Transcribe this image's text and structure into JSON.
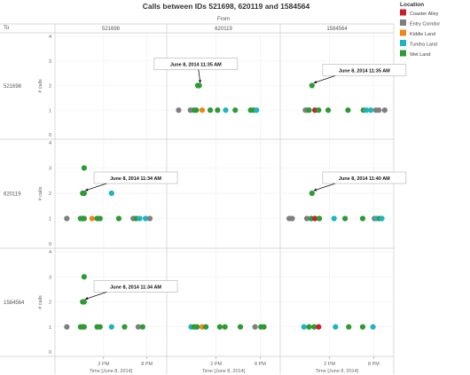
{
  "chart_data": {
    "type": "scatter",
    "title": "Calls between IDs 521698, 620119 and 1584564",
    "column_header": "From",
    "row_header": "To",
    "columns": [
      "521698",
      "620119",
      "1584564"
    ],
    "rows": [
      "521698",
      "620119",
      "1584564"
    ],
    "ylabel": "# calls",
    "xlabel": "Time [June 8, 2014]",
    "ylim": [
      0,
      4
    ],
    "yticks": [
      0,
      1,
      2,
      3,
      4
    ],
    "xlim_hours": [
      8,
      22
    ],
    "xticks": [
      {
        "value": 14,
        "label": "2 PM"
      },
      {
        "value": 20,
        "label": "8 PM"
      }
    ],
    "grid": true,
    "legend": {
      "title": "Location",
      "placement": "top-right",
      "items": [
        {
          "name": "Coaster Alley",
          "color": "#c8202e"
        },
        {
          "name": "Entry Corridor",
          "color": "#7f7f7f"
        },
        {
          "name": "Kiddie Land",
          "color": "#f0851c"
        },
        {
          "name": "Tundra Land",
          "color": "#1fb5c0"
        },
        {
          "name": "Wet Land",
          "color": "#2e9a36"
        }
      ]
    },
    "panels": [
      {
        "row": 0,
        "col": 0,
        "points": []
      },
      {
        "row": 0,
        "col": 1,
        "points": [
          {
            "h": 8.9,
            "y": 1,
            "loc": "Entry Corridor"
          },
          {
            "h": 10.5,
            "y": 1,
            "loc": "Entry Corridor"
          },
          {
            "h": 11.0,
            "y": 1,
            "loc": "Wet Land"
          },
          {
            "h": 11.3,
            "y": 1,
            "loc": "Wet Land"
          },
          {
            "h": 12.1,
            "y": 1,
            "loc": "Kiddie Land"
          },
          {
            "h": 13.2,
            "y": 1,
            "loc": "Wet Land"
          },
          {
            "h": 14.2,
            "y": 1,
            "loc": "Wet Land"
          },
          {
            "h": 15.3,
            "y": 1,
            "loc": "Tundra Land"
          },
          {
            "h": 16.6,
            "y": 1,
            "loc": "Wet Land"
          },
          {
            "h": 18.7,
            "y": 1,
            "loc": "Wet Land"
          },
          {
            "h": 19.1,
            "y": 1,
            "loc": "Wet Land"
          },
          {
            "h": 19.5,
            "y": 1,
            "loc": "Tundra Land"
          },
          {
            "h": 11.5,
            "y": 2,
            "loc": "Wet Land"
          },
          {
            "h": 11.7,
            "y": 2,
            "loc": "Wet Land"
          }
        ],
        "annotation": {
          "text": "June 8, 2014 11:35 AM",
          "h": 11.6,
          "y": 2
        }
      },
      {
        "row": 0,
        "col": 2,
        "points": [
          {
            "h": 10.7,
            "y": 1,
            "loc": "Entry Corridor"
          },
          {
            "h": 10.95,
            "y": 1,
            "loc": "Entry Corridor"
          },
          {
            "h": 11.2,
            "y": 1,
            "loc": "Wet Land"
          },
          {
            "h": 12.0,
            "y": 1,
            "loc": "Coaster Alley"
          },
          {
            "h": 12.5,
            "y": 1,
            "loc": "Wet Land"
          },
          {
            "h": 13.8,
            "y": 1,
            "loc": "Wet Land"
          },
          {
            "h": 16.5,
            "y": 1,
            "loc": "Wet Land"
          },
          {
            "h": 18.6,
            "y": 1,
            "loc": "Wet Land"
          },
          {
            "h": 19.0,
            "y": 1,
            "loc": "Tundra Land"
          },
          {
            "h": 19.6,
            "y": 1,
            "loc": "Tundra Land"
          },
          {
            "h": 20.3,
            "y": 1,
            "loc": "Entry Corridor"
          },
          {
            "h": 20.7,
            "y": 1,
            "loc": "Entry Corridor"
          },
          {
            "h": 21.5,
            "y": 1,
            "loc": "Entry Corridor"
          },
          {
            "h": 11.6,
            "y": 2,
            "loc": "Wet Land"
          }
        ],
        "annotation": {
          "text": "June 8, 2014 11:35 AM",
          "h": 11.6,
          "y": 2
        }
      },
      {
        "row": 1,
        "col": 0,
        "points": [
          {
            "h": 8.9,
            "y": 1,
            "loc": "Entry Corridor"
          },
          {
            "h": 10.8,
            "y": 1,
            "loc": "Wet Land"
          },
          {
            "h": 11.1,
            "y": 1,
            "loc": "Wet Land"
          },
          {
            "h": 11.3,
            "y": 1,
            "loc": "Wet Land"
          },
          {
            "h": 12.4,
            "y": 1,
            "loc": "Kiddie Land"
          },
          {
            "h": 13.1,
            "y": 1,
            "loc": "Wet Land"
          },
          {
            "h": 13.5,
            "y": 1,
            "loc": "Wet Land"
          },
          {
            "h": 16.1,
            "y": 1,
            "loc": "Wet Land"
          },
          {
            "h": 18.1,
            "y": 1,
            "loc": "Entry Corridor"
          },
          {
            "h": 18.5,
            "y": 1,
            "loc": "Wet Land"
          },
          {
            "h": 19.0,
            "y": 1,
            "loc": "Tundra Land"
          },
          {
            "h": 19.8,
            "y": 1,
            "loc": "Tundra Land"
          },
          {
            "h": 20.4,
            "y": 1,
            "loc": "Entry Corridor"
          },
          {
            "h": 11.1,
            "y": 2,
            "loc": "Wet Land"
          },
          {
            "h": 11.3,
            "y": 2,
            "loc": "Wet Land"
          },
          {
            "h": 15.1,
            "y": 2,
            "loc": "Tundra Land"
          },
          {
            "h": 11.3,
            "y": 3,
            "loc": "Wet Land"
          }
        ],
        "annotation": {
          "text": "June 8, 2014 11:34 AM",
          "h": 11.2,
          "y": 2
        }
      },
      {
        "row": 1,
        "col": 1,
        "points": []
      },
      {
        "row": 1,
        "col": 2,
        "points": [
          {
            "h": 8.5,
            "y": 1,
            "loc": "Entry Corridor"
          },
          {
            "h": 8.9,
            "y": 1,
            "loc": "Entry Corridor"
          },
          {
            "h": 10.9,
            "y": 1,
            "loc": "Entry Corridor"
          },
          {
            "h": 11.5,
            "y": 1,
            "loc": "Wet Land"
          },
          {
            "h": 12.0,
            "y": 1,
            "loc": "Coaster Alley"
          },
          {
            "h": 12.6,
            "y": 1,
            "loc": "Wet Land"
          },
          {
            "h": 14.6,
            "y": 1,
            "loc": "Tundra Land"
          },
          {
            "h": 16.1,
            "y": 1,
            "loc": "Wet Land"
          },
          {
            "h": 18.5,
            "y": 1,
            "loc": "Wet Land"
          },
          {
            "h": 20.1,
            "y": 1,
            "loc": "Entry Corridor"
          },
          {
            "h": 20.4,
            "y": 1,
            "loc": "Tundra Land"
          },
          {
            "h": 20.8,
            "y": 1,
            "loc": "Wet Land"
          },
          {
            "h": 21.1,
            "y": 1,
            "loc": "Tundra Land"
          },
          {
            "h": 11.6,
            "y": 2,
            "loc": "Wet Land"
          }
        ],
        "annotation": {
          "text": "June 8, 2014 11:40 AM",
          "h": 11.6,
          "y": 2
        }
      },
      {
        "row": 2,
        "col": 0,
        "points": [
          {
            "h": 8.9,
            "y": 1,
            "loc": "Entry Corridor"
          },
          {
            "h": 10.8,
            "y": 1,
            "loc": "Wet Land"
          },
          {
            "h": 11.1,
            "y": 1,
            "loc": "Wet Land"
          },
          {
            "h": 11.3,
            "y": 1,
            "loc": "Wet Land"
          },
          {
            "h": 13.1,
            "y": 1,
            "loc": "Wet Land"
          },
          {
            "h": 13.5,
            "y": 1,
            "loc": "Wet Land"
          },
          {
            "h": 15.1,
            "y": 1,
            "loc": "Tundra Land"
          },
          {
            "h": 16.9,
            "y": 1,
            "loc": "Wet Land"
          },
          {
            "h": 18.8,
            "y": 1,
            "loc": "Entry Corridor"
          },
          {
            "h": 19.4,
            "y": 1,
            "loc": "Wet Land"
          },
          {
            "h": 11.1,
            "y": 2,
            "loc": "Wet Land"
          },
          {
            "h": 11.3,
            "y": 2,
            "loc": "Wet Land"
          },
          {
            "h": 11.3,
            "y": 3,
            "loc": "Wet Land"
          }
        ],
        "annotation": {
          "text": "June 8, 2014 11:34 AM",
          "h": 11.2,
          "y": 2
        }
      },
      {
        "row": 2,
        "col": 1,
        "points": [
          {
            "h": 10.6,
            "y": 1,
            "loc": "Tundra Land"
          },
          {
            "h": 11.0,
            "y": 1,
            "loc": "Wet Land"
          },
          {
            "h": 11.4,
            "y": 1,
            "loc": "Wet Land"
          },
          {
            "h": 12.1,
            "y": 1,
            "loc": "Kiddie Land"
          },
          {
            "h": 12.6,
            "y": 1,
            "loc": "Wet Land"
          },
          {
            "h": 14.5,
            "y": 1,
            "loc": "Wet Land"
          },
          {
            "h": 15.2,
            "y": 1,
            "loc": "Wet Land"
          },
          {
            "h": 17.3,
            "y": 1,
            "loc": "Wet Land"
          },
          {
            "h": 19.3,
            "y": 1,
            "loc": "Entry Corridor"
          },
          {
            "h": 20.1,
            "y": 1,
            "loc": "Wet Land"
          },
          {
            "h": 20.5,
            "y": 1,
            "loc": "Wet Land"
          }
        ]
      },
      {
        "row": 2,
        "col": 2,
        "points": [
          {
            "h": 10.5,
            "y": 1,
            "loc": "Tundra Land"
          },
          {
            "h": 11.2,
            "y": 1,
            "loc": "Wet Land"
          },
          {
            "h": 11.9,
            "y": 1,
            "loc": "Wet Land"
          },
          {
            "h": 12.5,
            "y": 1,
            "loc": "Coaster Alley"
          },
          {
            "h": 14.8,
            "y": 1,
            "loc": "Tundra Land"
          },
          {
            "h": 16.6,
            "y": 1,
            "loc": "Wet Land"
          },
          {
            "h": 18.5,
            "y": 1,
            "loc": "Wet Land"
          },
          {
            "h": 19.9,
            "y": 1,
            "loc": "Tundra Land"
          }
        ]
      }
    ]
  }
}
